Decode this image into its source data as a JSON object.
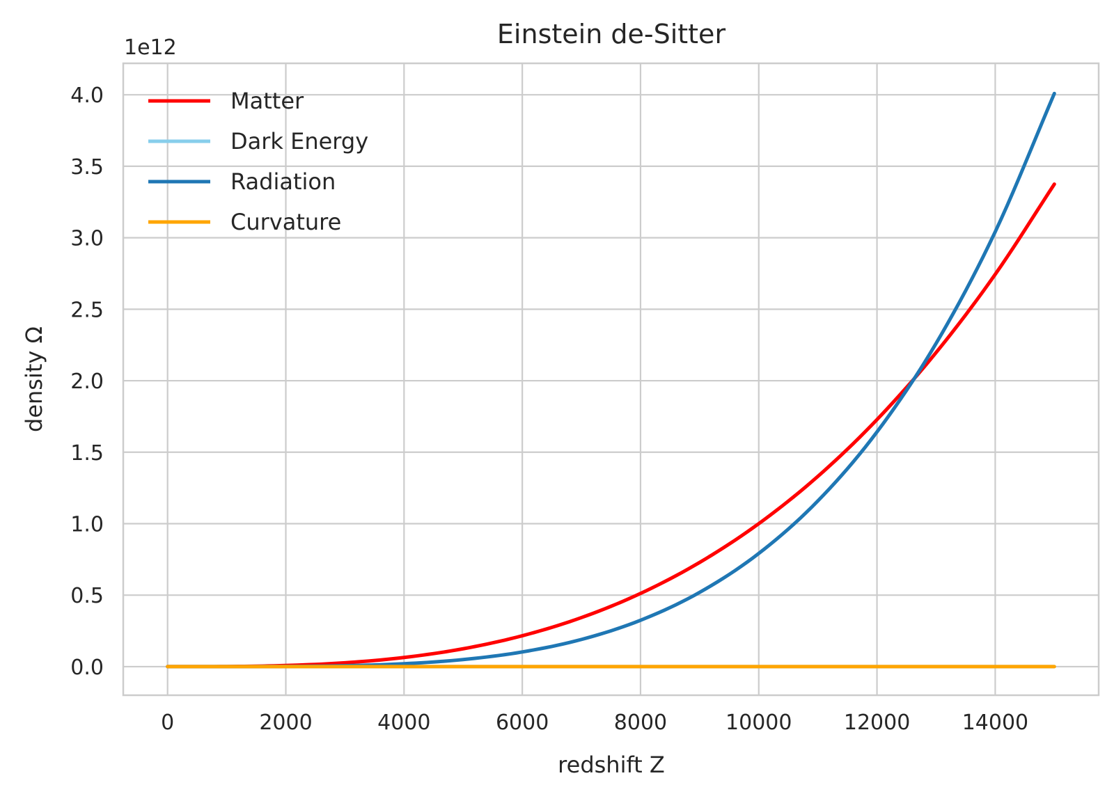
{
  "chart_data": {
    "type": "line",
    "title": "Einstein de-Sitter",
    "xlabel": "redshift Z",
    "ylabel": "density Ω",
    "y_offset_label": "1e12",
    "xlim": [
      -750,
      15750
    ],
    "ylim": [
      -0.2,
      4.22
    ],
    "x_ticks": [
      0,
      2000,
      4000,
      6000,
      8000,
      10000,
      12000,
      14000
    ],
    "x_tick_labels": [
      "0",
      "2000",
      "4000",
      "6000",
      "8000",
      "10000",
      "12000",
      "14000"
    ],
    "y_ticks": [
      0.0,
      0.5,
      1.0,
      1.5,
      2.0,
      2.5,
      3.0,
      3.5,
      4.0
    ],
    "y_tick_labels": [
      "0.0",
      "0.5",
      "1.0",
      "1.5",
      "2.0",
      "2.5",
      "3.0",
      "3.5",
      "4.0"
    ],
    "grid": true,
    "legend_position": "top-left",
    "x": [
      0,
      1000,
      2000,
      3000,
      4000,
      5000,
      6000,
      7000,
      8000,
      9000,
      10000,
      11000,
      12000,
      13000,
      14000,
      15000
    ],
    "series": [
      {
        "name": "Matter",
        "color": "#ff0000",
        "values": [
          0.0,
          0.001,
          0.008,
          0.027,
          0.064,
          0.125,
          0.216,
          0.343,
          0.512,
          0.729,
          1.0,
          1.331,
          1.728,
          2.197,
          2.744,
          3.375
        ]
      },
      {
        "name": "Dark Energy",
        "color": "#87ceeb",
        "values": [
          0.0,
          0.0,
          0.0,
          0.0,
          0.0,
          0.0,
          0.0,
          0.0,
          0.0,
          0.0,
          0.0,
          0.0,
          0.0,
          0.0,
          0.0,
          0.0
        ]
      },
      {
        "name": "Radiation",
        "color": "#1f77b4",
        "values": [
          0.0,
          0.0001,
          0.0013,
          0.0064,
          0.0203,
          0.0495,
          0.1026,
          0.1901,
          0.3243,
          0.5195,
          0.7917,
          1.1592,
          1.6417,
          2.2613,
          3.0418,
          4.0091
        ]
      },
      {
        "name": "Curvature",
        "color": "#ffa500",
        "values": [
          0.0,
          0.0,
          0.0,
          0.0,
          0.0,
          0.0,
          0.0,
          0.0,
          0.0,
          0.0,
          0.0,
          0.0,
          0.0,
          0.0,
          0.0,
          0.0
        ]
      }
    ]
  }
}
